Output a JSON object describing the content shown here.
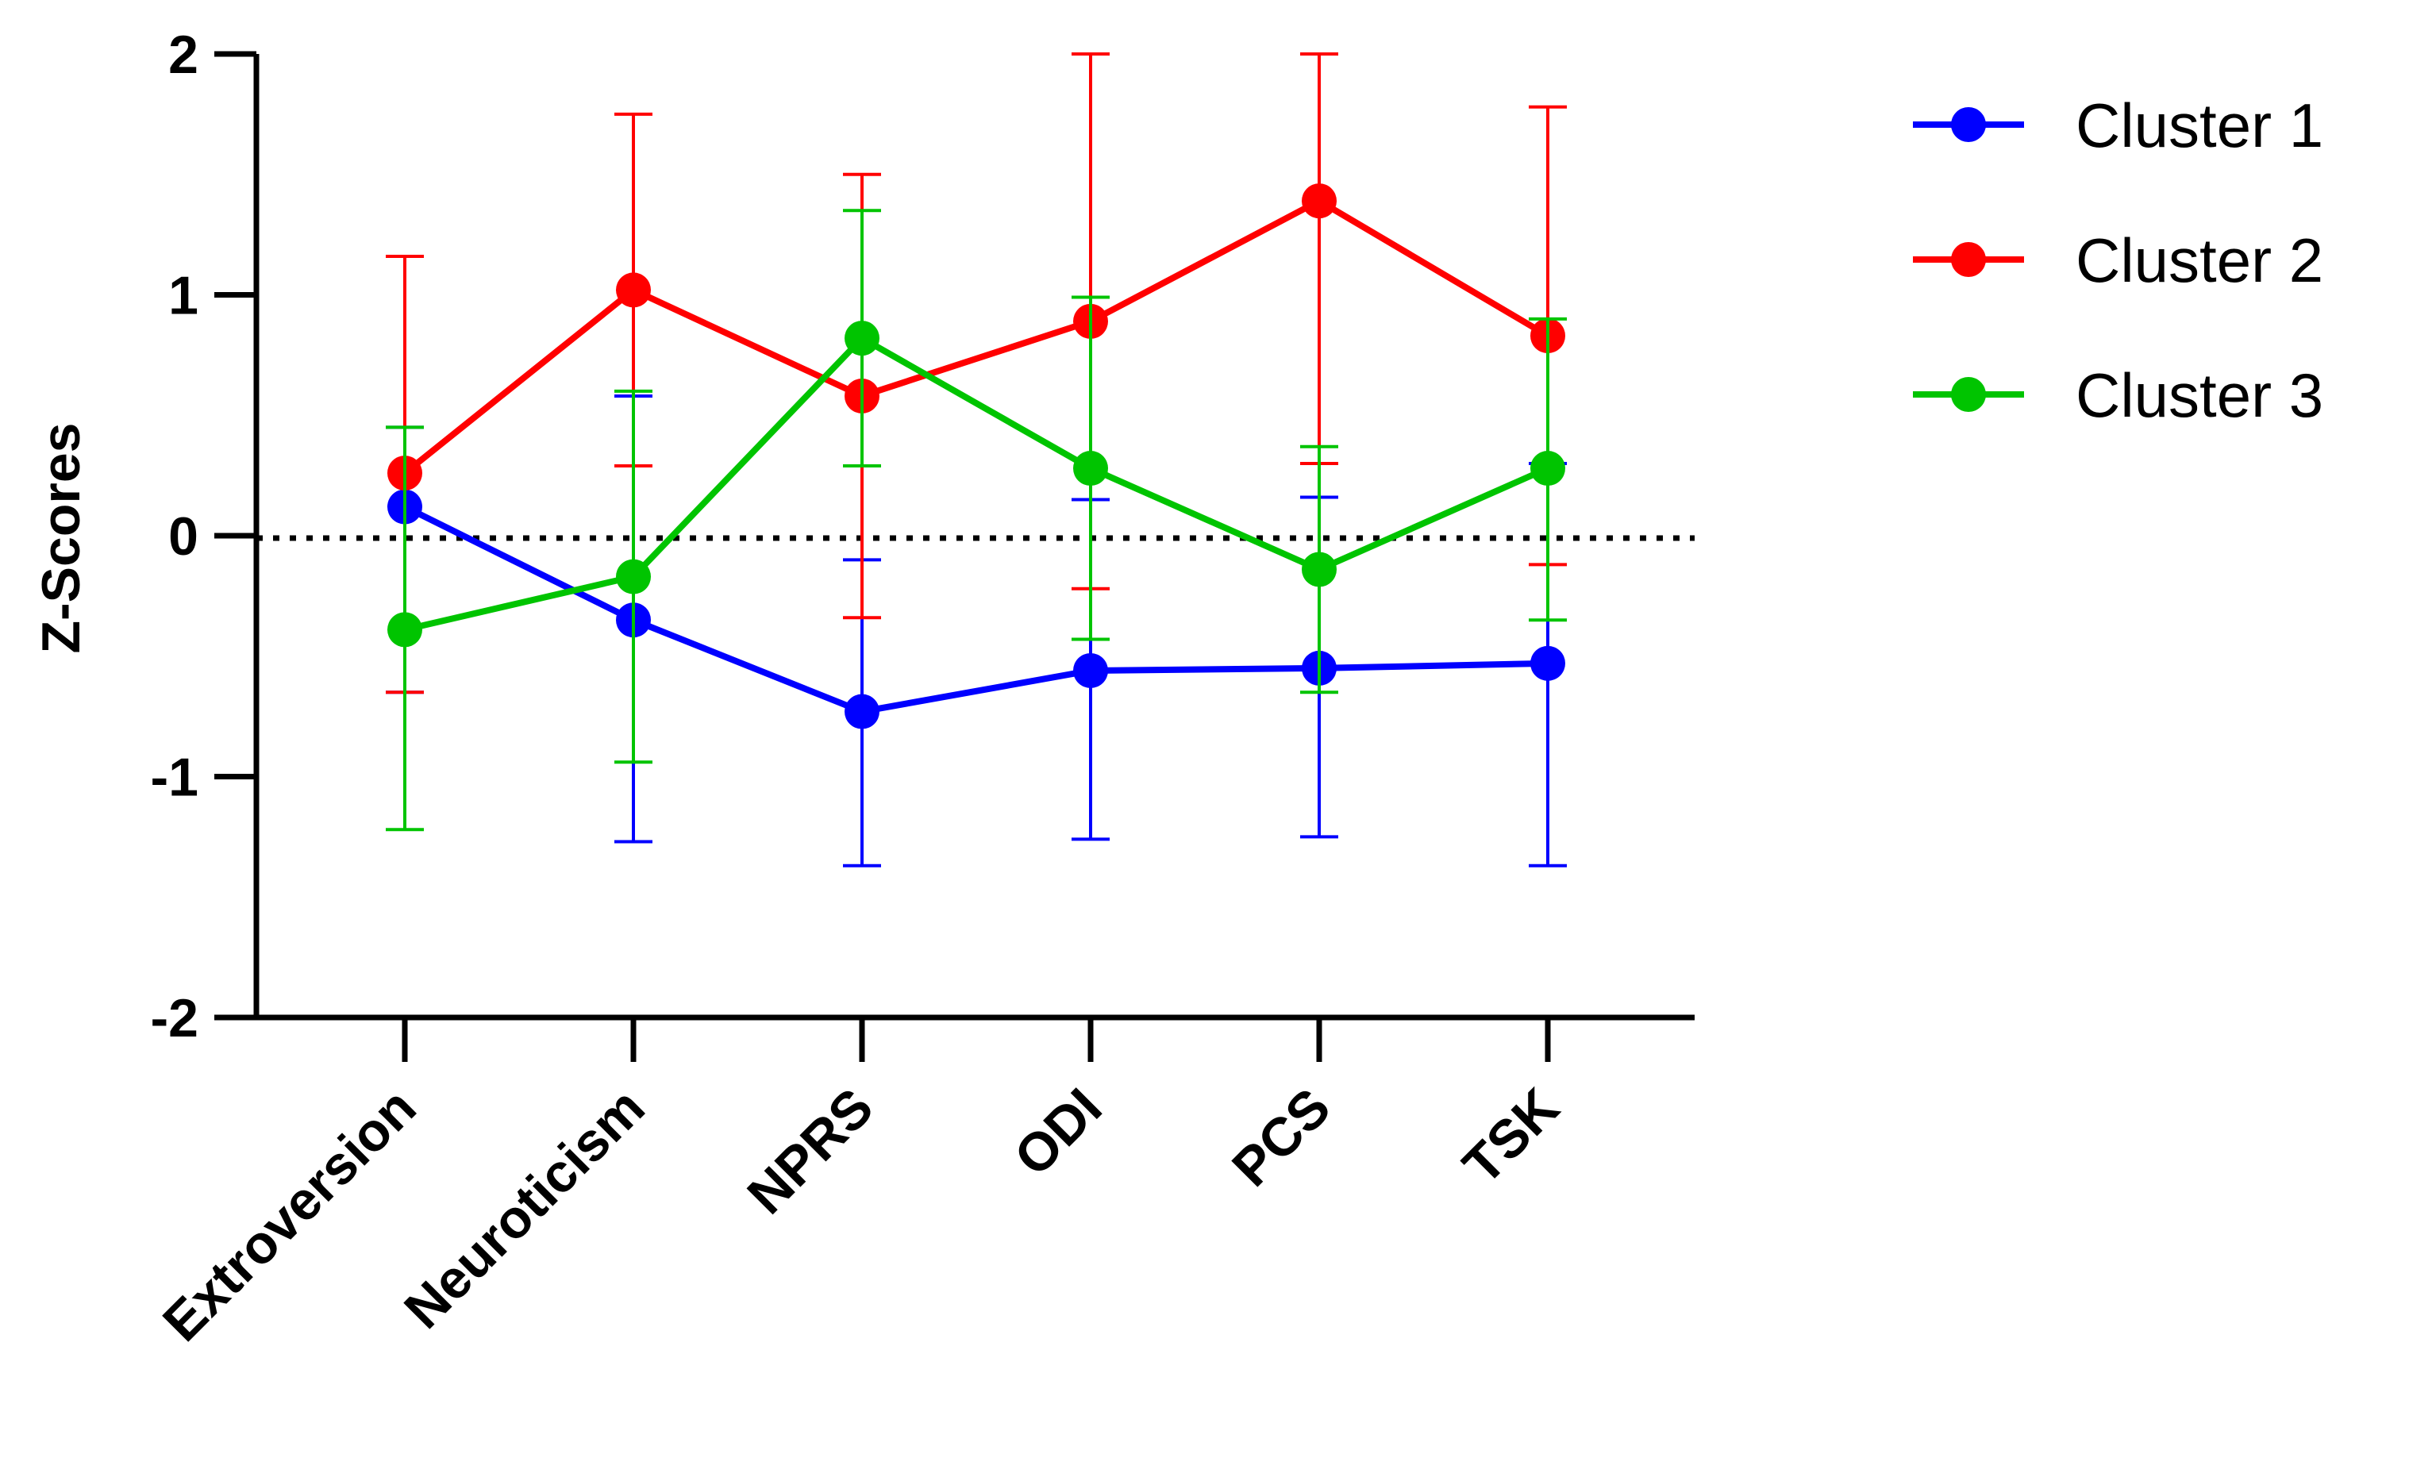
{
  "chart_data": {
    "type": "line",
    "title": "",
    "xlabel": "",
    "ylabel": "Z-Scores",
    "ylim": [
      -2,
      2
    ],
    "yticks": [
      "2",
      "1",
      "0",
      "-1",
      "-2"
    ],
    "categories": [
      "Extroversion",
      "Neuroticism",
      "NPRS",
      "ODI",
      "PCS",
      "TSK"
    ],
    "reference_line": 0,
    "legend_position": "top-right",
    "series": [
      {
        "name": "Cluster 1",
        "color": "#0000ff",
        "values": [
          0.12,
          -0.35,
          -0.73,
          -0.56,
          -0.55,
          -0.53
        ],
        "err_low": [
          -0.65,
          -1.27,
          -1.37,
          -1.26,
          -1.25,
          -1.37
        ],
        "err_high": [
          0.45,
          0.58,
          -0.1,
          0.15,
          0.16,
          0.3
        ]
      },
      {
        "name": "Cluster 2",
        "color": "#ff0000",
        "values": [
          0.26,
          1.02,
          0.58,
          0.89,
          1.39,
          0.83
        ],
        "err_low": [
          -0.65,
          0.29,
          -0.34,
          -0.22,
          0.3,
          -0.12
        ],
        "err_high": [
          1.16,
          1.75,
          1.5,
          2.0,
          2.0,
          1.78
        ]
      },
      {
        "name": "Cluster 3",
        "color": "#00c400",
        "values": [
          -0.39,
          -0.17,
          0.82,
          0.28,
          -0.14,
          0.28
        ],
        "err_low": [
          -1.22,
          -0.94,
          0.29,
          -0.43,
          -0.65,
          -0.35
        ],
        "err_high": [
          0.45,
          0.6,
          1.35,
          0.99,
          0.37,
          0.9
        ]
      }
    ]
  }
}
